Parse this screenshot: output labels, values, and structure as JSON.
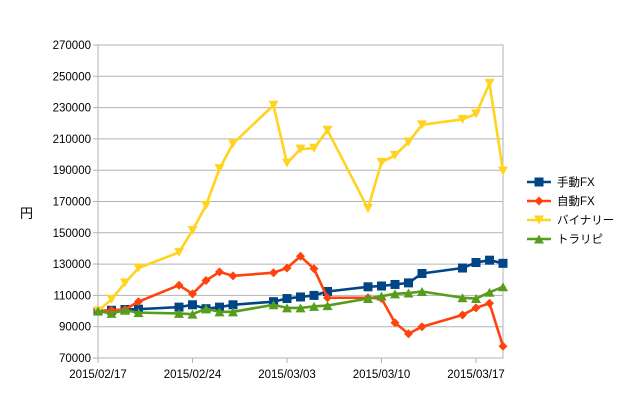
{
  "chart_data": {
    "type": "line",
    "ylabel": "円",
    "ylim": [
      70000,
      270000
    ],
    "yticks": [
      70000,
      90000,
      110000,
      130000,
      150000,
      170000,
      190000,
      210000,
      230000,
      250000,
      270000
    ],
    "xticks": [
      "2015/02/17",
      "2015/02/24",
      "2015/03/03",
      "2015/03/10",
      "2015/03/17"
    ],
    "xlim": [
      "2015-02-17",
      "2015-03-19"
    ],
    "grid": "horizontal",
    "legend_position": "right",
    "series": [
      {
        "name": "手動FX",
        "color": "#004586",
        "marker": "square",
        "points": [
          [
            "2015-02-17",
            100000
          ],
          [
            "2015-02-18",
            100500
          ],
          [
            "2015-02-19",
            101000
          ],
          [
            "2015-02-20",
            101200
          ],
          [
            "2015-02-23",
            102500
          ],
          [
            "2015-02-24",
            104000
          ],
          [
            "2015-02-25",
            101500
          ],
          [
            "2015-02-26",
            102500
          ],
          [
            "2015-02-27",
            104000
          ],
          [
            "2015-03-02",
            106000
          ],
          [
            "2015-03-03",
            108000
          ],
          [
            "2015-03-04",
            109000
          ],
          [
            "2015-03-05",
            110000
          ],
          [
            "2015-03-06",
            112500
          ],
          [
            "2015-03-09",
            115500
          ],
          [
            "2015-03-10",
            116000
          ],
          [
            "2015-03-11",
            117000
          ],
          [
            "2015-03-12",
            118000
          ],
          [
            "2015-03-13",
            124000
          ],
          [
            "2015-03-16",
            127500
          ],
          [
            "2015-03-17",
            131000
          ],
          [
            "2015-03-18",
            132500
          ],
          [
            "2015-03-19",
            130500
          ]
        ]
      },
      {
        "name": "自動FX",
        "color": "#ff420e",
        "marker": "diamond",
        "points": [
          [
            "2015-02-17",
            100000
          ],
          [
            "2015-02-18",
            100500
          ],
          [
            "2015-02-19",
            101000
          ],
          [
            "2015-02-20",
            106000
          ],
          [
            "2015-02-23",
            116500
          ],
          [
            "2015-02-24",
            111000
          ],
          [
            "2015-02-25",
            119500
          ],
          [
            "2015-02-26",
            125000
          ],
          [
            "2015-02-27",
            122500
          ],
          [
            "2015-03-02",
            124500
          ],
          [
            "2015-03-03",
            127500
          ],
          [
            "2015-03-04",
            135000
          ],
          [
            "2015-03-05",
            127000
          ],
          [
            "2015-03-06",
            108500
          ],
          [
            "2015-03-09",
            108500
          ],
          [
            "2015-03-10",
            108000
          ],
          [
            "2015-03-11",
            92500
          ],
          [
            "2015-03-12",
            85500
          ],
          [
            "2015-03-13",
            90000
          ],
          [
            "2015-03-16",
            97500
          ],
          [
            "2015-03-17",
            102000
          ],
          [
            "2015-03-18",
            105000
          ],
          [
            "2015-03-19",
            77500
          ]
        ]
      },
      {
        "name": "バイナリー",
        "color": "#ffd320",
        "marker": "triangle-down",
        "points": [
          [
            "2015-02-17",
            100000
          ],
          [
            "2015-02-18",
            107500
          ],
          [
            "2015-02-19",
            118000
          ],
          [
            "2015-02-20",
            127500
          ],
          [
            "2015-02-23",
            137500
          ],
          [
            "2015-02-24",
            151500
          ],
          [
            "2015-02-25",
            167500
          ],
          [
            "2015-02-26",
            191000
          ],
          [
            "2015-02-27",
            207000
          ],
          [
            "2015-03-02",
            231500
          ],
          [
            "2015-03-03",
            194500
          ],
          [
            "2015-03-04",
            203500
          ],
          [
            "2015-03-05",
            204000
          ],
          [
            "2015-03-06",
            215500
          ],
          [
            "2015-03-09",
            165500
          ],
          [
            "2015-03-10",
            195000
          ],
          [
            "2015-03-11",
            199500
          ],
          [
            "2015-03-12",
            208000
          ],
          [
            "2015-03-13",
            219000
          ],
          [
            "2015-03-16",
            222500
          ],
          [
            "2015-03-17",
            226000
          ],
          [
            "2015-03-18",
            245500
          ],
          [
            "2015-03-19",
            189500
          ]
        ]
      },
      {
        "name": "トラリピ",
        "color": "#579d1c",
        "marker": "triangle-up",
        "points": [
          [
            "2015-02-17",
            100000
          ],
          [
            "2015-02-18",
            98500
          ],
          [
            "2015-02-19",
            100500
          ],
          [
            "2015-02-20",
            99000
          ],
          [
            "2015-02-23",
            98500
          ],
          [
            "2015-02-24",
            98000
          ],
          [
            "2015-02-25",
            101500
          ],
          [
            "2015-02-26",
            99500
          ],
          [
            "2015-02-27",
            99500
          ],
          [
            "2015-03-02",
            104000
          ],
          [
            "2015-03-03",
            102000
          ],
          [
            "2015-03-04",
            102000
          ],
          [
            "2015-03-05",
            103000
          ],
          [
            "2015-03-06",
            103500
          ],
          [
            "2015-03-09",
            108000
          ],
          [
            "2015-03-10",
            109500
          ],
          [
            "2015-03-11",
            111000
          ],
          [
            "2015-03-12",
            111500
          ],
          [
            "2015-03-13",
            112500
          ],
          [
            "2015-03-16",
            108500
          ],
          [
            "2015-03-17",
            108000
          ],
          [
            "2015-03-18",
            112000
          ],
          [
            "2015-03-19",
            115500
          ]
        ]
      }
    ]
  }
}
